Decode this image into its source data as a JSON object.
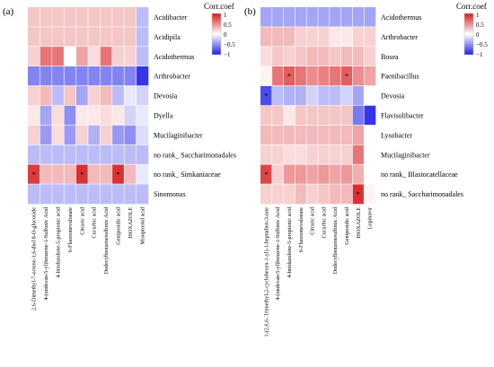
{
  "panels": [
    {
      "id": "a",
      "panel_label": "(a)",
      "legend": {
        "title": "Corr.coef",
        "ticks": [
          "1",
          "0.5",
          "0",
          "−0.5",
          "−1"
        ]
      },
      "significance_mark": "*"
    },
    {
      "id": "b",
      "panel_label": "(b)",
      "legend": {
        "title": "Corr.coef",
        "ticks": [
          "1",
          "0.5",
          "0",
          "−0.5",
          "−1"
        ]
      },
      "significance_mark": "*"
    }
  ],
  "chart_data": [
    {
      "type": "heatmap",
      "title": "",
      "color_scale": {
        "min": -1,
        "max": 1,
        "low": "#1f1fe6",
        "mid": "#ffffff",
        "high": "#d7191c"
      },
      "rows": [
        "Acidibacter",
        "Acidipila",
        "Acidothermus",
        "Arthrobacter",
        "Devosia",
        "Dyella",
        "Mucilaginibacter",
        "no rank_ Saccharimonadales",
        "no rank_ Simkaniaceae",
        "Sinomonas"
      ],
      "columns": [
        "2,6-Dimethyl-7-octene-1,6-diol 8-O-glucoside",
        "4-(undecan-5-yl)benzene-1-Sulfonic Acid",
        "4-Imidazolone-5-propionic acid",
        "6-Fluoromevalonate",
        "Citraric acid",
        "Cucurbic acid",
        "Dodecylbenzenesulfonic Acid",
        "Geniposidic acid",
        "ISOXAZOLE",
        "Misoprostol acid"
      ],
      "values": [
        [
          0.25,
          0.25,
          0.25,
          0.25,
          0.25,
          0.25,
          0.25,
          0.25,
          0.25,
          -0.3
        ],
        [
          0.25,
          0.25,
          0.25,
          0.25,
          0.25,
          0.25,
          0.25,
          0.25,
          0.25,
          -0.3
        ],
        [
          0.2,
          0.6,
          0.6,
          0.0,
          0.4,
          0.15,
          0.6,
          0.2,
          0.2,
          -0.3
        ],
        [
          -0.55,
          -0.55,
          -0.55,
          -0.55,
          -0.55,
          -0.55,
          -0.55,
          -0.55,
          -0.55,
          -0.9
        ],
        [
          0.2,
          0.3,
          -0.3,
          0.25,
          -0.4,
          0.2,
          0.3,
          -0.3,
          -0.1,
          -0.2
        ],
        [
          0.1,
          -0.4,
          0.15,
          -0.5,
          0.1,
          0.1,
          0.15,
          0.1,
          -0.2,
          -0.1
        ],
        [
          0.2,
          -0.45,
          0.15,
          -0.45,
          0.2,
          -0.35,
          0.2,
          -0.45,
          -0.5,
          -0.15
        ],
        [
          -0.3,
          -0.3,
          -0.3,
          -0.3,
          -0.3,
          -0.3,
          -0.3,
          -0.3,
          -0.3,
          -0.3
        ],
        [
          0.85,
          0.3,
          0.3,
          0.3,
          0.9,
          0.3,
          0.3,
          0.9,
          0.3,
          -0.1
        ],
        [
          -0.3,
          -0.3,
          -0.3,
          -0.3,
          -0.3,
          -0.3,
          -0.3,
          -0.3,
          -0.3,
          -0.3
        ]
      ],
      "significant": [
        [
          8,
          0
        ],
        [
          8,
          4
        ],
        [
          8,
          7
        ]
      ],
      "legend_position": "top-right"
    },
    {
      "type": "heatmap",
      "title": "",
      "color_scale": {
        "min": -1,
        "max": 1,
        "low": "#1f1fe6",
        "mid": "#ffffff",
        "high": "#d7191c"
      },
      "rows": [
        "Acidothermus",
        "Arthrobacter",
        "Bosea",
        "Paenibacillus",
        "Devosia",
        "Flavisolibacter",
        "Lysobacter",
        "Mucilaginibacter",
        "no rank_ Blastocatellaceae",
        "no rank_ Saccharimonadales"
      ],
      "columns": [
        "1-(2,6,6- Trimethyl-2-cyclohexen-1-yl)-1-heptadien-3-one",
        "4-(undecan-5-yl)benzene-1-Sulfonic Acid",
        "4-Imidazolone-5-propionic acid",
        "6-Fluoromevalonate",
        "Citraric acid",
        "Cucurbic acid",
        "Dodecylbenzenesulfonic Acid",
        "Geniposidic acid",
        "ISOXAZOLE",
        "Lopinavir"
      ],
      "values": [
        [
          -0.4,
          -0.4,
          -0.4,
          -0.4,
          -0.4,
          -0.4,
          -0.4,
          -0.4,
          -0.4,
          -0.4
        ],
        [
          0.3,
          0.3,
          0.3,
          0.2,
          0.2,
          0.2,
          0.1,
          0.1,
          0.2,
          0.2
        ],
        [
          0.15,
          0.25,
          0.2,
          0.25,
          0.3,
          0.3,
          0.25,
          0.3,
          0.3,
          0.2
        ],
        [
          0.05,
          0.6,
          0.7,
          0.6,
          0.5,
          0.55,
          0.6,
          0.7,
          0.5,
          0.4
        ],
        [
          -0.8,
          -0.3,
          -0.35,
          -0.35,
          -0.2,
          -0.3,
          -0.3,
          -0.2,
          -0.4,
          0.0
        ],
        [
          0.25,
          0.25,
          0.1,
          0.25,
          0.25,
          0.25,
          0.25,
          0.25,
          -0.6,
          -0.9
        ],
        [
          0.3,
          0.3,
          0.3,
          0.3,
          0.3,
          0.3,
          0.3,
          0.3,
          0.4,
          0.0
        ],
        [
          0.2,
          0.2,
          0.15,
          0.15,
          0.2,
          0.2,
          0.2,
          0.2,
          0.6,
          0.0
        ],
        [
          0.8,
          0.2,
          0.45,
          0.45,
          0.4,
          0.45,
          0.4,
          0.45,
          0.35,
          0.0
        ],
        [
          0.2,
          0.2,
          0.2,
          0.3,
          0.2,
          0.25,
          0.3,
          0.3,
          0.9,
          0.05
        ]
      ],
      "significant": [
        [
          3,
          2
        ],
        [
          3,
          7
        ],
        [
          4,
          0
        ],
        [
          8,
          0
        ],
        [
          9,
          8
        ]
      ],
      "legend_position": "top-right"
    }
  ]
}
